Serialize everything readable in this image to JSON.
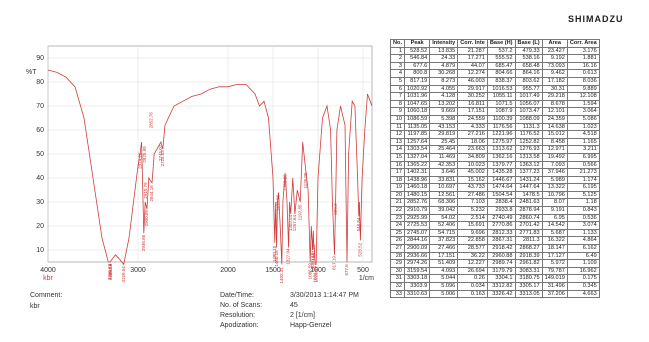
{
  "logo": "SHIMADZU",
  "chart_data": {
    "type": "line",
    "ylabel": "%T",
    "xlabel": "1/cm",
    "annotation": "kbr",
    "color": "#d23c3c",
    "grid": true,
    "xlim": [
      4000,
      400
    ],
    "xticks": [
      4000,
      3000,
      2000,
      1500,
      1000,
      500
    ],
    "ylim": [
      5,
      95
    ],
    "yticks": [
      10,
      20,
      30,
      40,
      50,
      60,
      70,
      80,
      90
    ],
    "x": [
      4000,
      3900,
      3800,
      3700,
      3600,
      3500,
      3400,
      3330,
      3310,
      3300,
      3250,
      3200,
      3159,
      3100,
      3050,
      3000,
      2974,
      2960,
      2936,
      2920,
      2900,
      2880,
      2844,
      2820,
      2745,
      2725,
      2700,
      2600,
      2500,
      2400,
      2300,
      2200,
      2100,
      2000,
      1900,
      1800,
      1700,
      1650,
      1600,
      1550,
      1500,
      1480,
      1470,
      1460,
      1450,
      1439,
      1420,
      1402,
      1390,
      1365,
      1345,
      1327,
      1315,
      1303,
      1280,
      1257,
      1230,
      1198,
      1170,
      1135,
      1110,
      1087,
      1075,
      1060,
      1052,
      1048,
      1040,
      1032,
      1021,
      1000,
      950,
      900,
      860,
      840,
      817,
      805,
      790,
      750,
      700,
      678,
      660,
      620,
      590,
      560,
      547,
      540,
      529,
      510,
      480,
      450,
      420,
      400
    ],
    "values": [
      85,
      84,
      82,
      78,
      65,
      40,
      15,
      5,
      5,
      5.5,
      8,
      6,
      4,
      15,
      30,
      45,
      51,
      55,
      17,
      30,
      27,
      40,
      38,
      50,
      55,
      52,
      62,
      70,
      72,
      74,
      75,
      77,
      78,
      78,
      79,
      79,
      75,
      70,
      72,
      65,
      40,
      13,
      30,
      11,
      30,
      34,
      20,
      4,
      30,
      42,
      30,
      11,
      30,
      25,
      40,
      25,
      35,
      30,
      55,
      43,
      35,
      5,
      20,
      10,
      18,
      13,
      10,
      4,
      4,
      40,
      65,
      70,
      60,
      30,
      8,
      30,
      60,
      70,
      62,
      5,
      50,
      72,
      70,
      40,
      24,
      30,
      14,
      40,
      60,
      75,
      72,
      70
    ]
  },
  "table": {
    "header": [
      "No.",
      "Peak",
      "Intensity",
      "Corr. Inte",
      "Base (H)",
      "Base (L)",
      "Area",
      "Corr. Area"
    ],
    "rows": [
      [
        "1",
        "528.52",
        "13.835",
        "21.287",
        "537.2",
        "479.33",
        "23.427",
        "3.176"
      ],
      [
        "2",
        "546.84",
        "24.33",
        "17.271",
        "555.52",
        "538.16",
        "9.192",
        "1.881"
      ],
      [
        "3",
        "677.6",
        "4.879",
        "44.07",
        "685.47",
        "658.48",
        "73.093",
        "16.16"
      ],
      [
        "4",
        "800.8",
        "30.268",
        "12.274",
        "804.66",
        "864.16",
        "9.462",
        "0.613"
      ],
      [
        "5",
        "817.19",
        "8.273",
        "46.003",
        "838.37",
        "803.62",
        "17.182",
        "8.036"
      ],
      [
        "6",
        "1020.92",
        "4.055",
        "29.917",
        "1016.53",
        "955.77",
        "30.31",
        "9.889"
      ],
      [
        "7",
        "1031.96",
        "4.128",
        "30.252",
        "1055.11",
        "1017.49",
        "29.218",
        "12.108"
      ],
      [
        "8",
        "1047.65",
        "13.202",
        "16.811",
        "1071.5",
        "1056.07",
        "8.678",
        "1.594"
      ],
      [
        "9",
        "1060.18",
        "9.669",
        "17.151",
        "1087.9",
        "1073.47",
        "12.101",
        "3.064"
      ],
      [
        "10",
        "1086.59",
        "5.398",
        "24.559",
        "1100.39",
        "1088.09",
        "24.359",
        "5.086"
      ],
      [
        "11",
        "1135.05",
        "43.153",
        "4.333",
        "1176.56",
        "1131.3",
        "14.638",
        "1.023"
      ],
      [
        "12",
        "1197.85",
        "29.819",
        "27.216",
        "1221.96",
        "1176.52",
        "15.012",
        "4.518"
      ],
      [
        "13",
        "1257.64",
        "25.45",
        "18.06",
        "1275.97",
        "1252.82",
        "8.458",
        "1.165"
      ],
      [
        "14",
        "1303.54",
        "25.464",
        "23.663",
        "1313.62",
        "1276.93",
        "12.971",
        "3.211"
      ],
      [
        "15",
        "1327.04",
        "11.469",
        "34.809",
        "1362.16",
        "1313.58",
        "19.492",
        "6.995"
      ],
      [
        "16",
        "1365.22",
        "42.353",
        "10.023",
        "1379.77",
        "1363.12",
        "7.093",
        "0.566"
      ],
      [
        "17",
        "1402.31",
        "3.646",
        "45.002",
        "1435.28",
        "1377.23",
        "37.946",
        "21.273"
      ],
      [
        "18",
        "1438.96",
        "33.831",
        "15.162",
        "1446.67",
        "1431.24",
        "5.989",
        "1.174"
      ],
      [
        "19",
        "1460.18",
        "10.697",
        "43.733",
        "1474.64",
        "1447.64",
        "13.322",
        "6.195"
      ],
      [
        "20",
        "1480.15",
        "12.561",
        "27.486",
        "1504.54",
        "1478.5",
        "10.796",
        "5.125"
      ],
      [
        "21",
        "2852.76",
        "68.306",
        "7.103",
        "2838.4",
        "2481.63",
        "8.07",
        "1.18"
      ],
      [
        "22",
        "2910.79",
        "39.042",
        "5.232",
        "2933.8",
        "2878.94",
        "9.191",
        "0.843"
      ],
      [
        "23",
        "2925.99",
        "54.02",
        "2.514",
        "2740.49",
        "2860.74",
        "6.95",
        "0.536"
      ],
      [
        "24",
        "2725.53",
        "52.406",
        "15.691",
        "2770.86",
        "2701.42",
        "14.542",
        "3.074"
      ],
      [
        "25",
        "2745.07",
        "54.715",
        "9.696",
        "2812.33",
        "2771.83",
        "5.687",
        "1.133"
      ],
      [
        "26",
        "2844.16",
        "37.823",
        "22.858",
        "2867.31",
        "2811.3",
        "16.322",
        "4.864"
      ],
      [
        "27",
        "2900.09",
        "27.466",
        "28.577",
        "2918.42",
        "2868.27",
        "18.147",
        "6.162"
      ],
      [
        "28",
        "2936.66",
        "17.151",
        "36.22",
        "2960.88",
        "2918.39",
        "17.127",
        "6.49"
      ],
      [
        "29",
        "2974.26",
        "51.409",
        "12.227",
        "2989.74",
        "2961.82",
        "5.972",
        "1.109"
      ],
      [
        "30",
        "3159.54",
        "4.093",
        "26.694",
        "3179.79",
        "3083.31",
        "79.787",
        "16.962"
      ],
      [
        "31",
        "3303.18",
        "5.044",
        "0.26",
        "3304.1",
        "3180.75",
        "149.019",
        "0.175"
      ],
      [
        "32",
        "3303.9",
        "5.096",
        "0.034",
        "3312.82",
        "3305.17",
        "31.496",
        "0.345"
      ],
      [
        "33",
        "3310.63",
        "5.006",
        "0.163",
        "3326.42",
        "3313.05",
        "37.206",
        "4.663"
      ]
    ]
  },
  "footer": {
    "comment_label": "Comment:",
    "comment": "kbr",
    "fields": [
      {
        "label": "Date/Time:",
        "value": "3/30/2013 1:14:47 PM"
      },
      {
        "label": "No. of Scans:",
        "value": "45"
      },
      {
        "label": "Resolution:",
        "value": "2 [1/cm]"
      },
      {
        "label": "Apodization:",
        "value": "Happ-Genzel"
      }
    ]
  }
}
